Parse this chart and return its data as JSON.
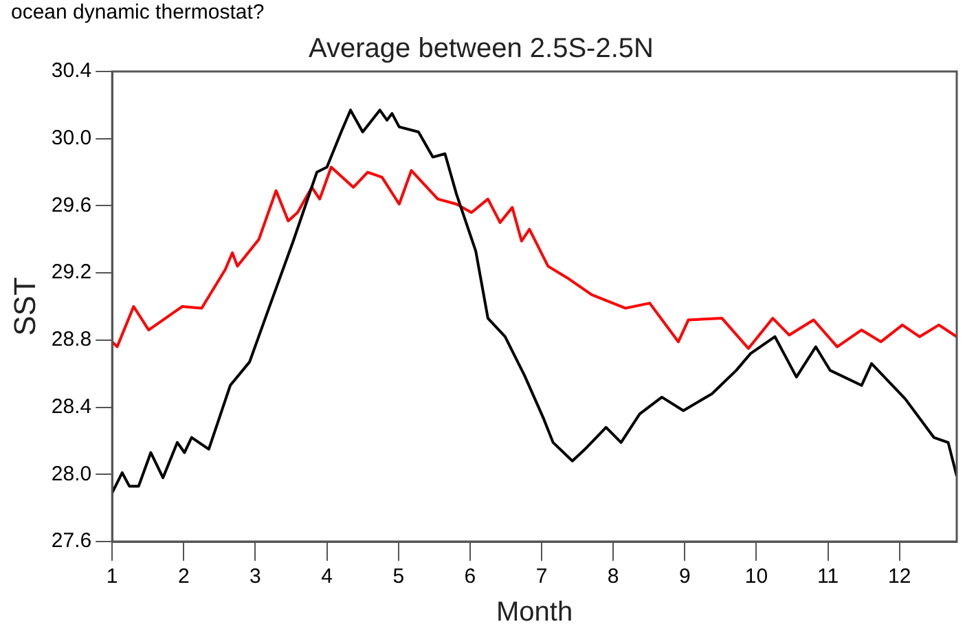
{
  "chart_data": {
    "type": "line",
    "title": "Average between 2.5S-2.5N",
    "xlabel": "Month",
    "ylabel": "SST",
    "annotations": [
      "ocean dynamic thermostat?"
    ],
    "xlim": [
      1,
      12.8
    ],
    "xticks": [
      1,
      2,
      3,
      4,
      5,
      6,
      7,
      8,
      9,
      10,
      11,
      12
    ],
    "ylim": [
      27.6,
      30.4
    ],
    "yticks": [
      {
        "value": 27.6,
        "label": "27.6"
      },
      {
        "value": 28,
        "label": "28.0"
      },
      28.4,
      28.8,
      29.2,
      29.6,
      {
        "value": 30,
        "label": "30.0"
      },
      30.4
    ],
    "grid": false,
    "legend": false,
    "marker": "none",
    "line_style": "solid",
    "series": [
      {
        "color": "#000000",
        "x": [
          1.0,
          1.14,
          1.24,
          1.37,
          1.54,
          1.71,
          1.91,
          2.01,
          2.11,
          2.35,
          2.65,
          2.92,
          3.19,
          3.53,
          3.86,
          4.0,
          4.2,
          4.33,
          4.5,
          4.74,
          4.84,
          4.91,
          5.01,
          5.28,
          5.48,
          5.65,
          5.81,
          6.08,
          6.25,
          6.49,
          6.76,
          7.03,
          7.16,
          7.43,
          7.63,
          7.9,
          8.11,
          8.37,
          8.68,
          8.98,
          9.38,
          9.72,
          9.92,
          10.26,
          10.56,
          10.83,
          11.03,
          11.47,
          11.61,
          12.08,
          12.48,
          12.68,
          12.8
        ],
        "values": [
          27.89,
          28.01,
          27.93,
          27.93,
          28.13,
          27.98,
          28.19,
          28.13,
          28.22,
          28.15,
          28.53,
          28.67,
          28.99,
          29.39,
          29.8,
          29.83,
          30.04,
          30.17,
          30.04,
          30.17,
          30.11,
          30.15,
          30.07,
          30.04,
          29.89,
          29.91,
          29.67,
          29.33,
          28.93,
          28.82,
          28.59,
          28.33,
          28.19,
          28.08,
          28.16,
          28.28,
          28.19,
          28.36,
          28.46,
          28.38,
          28.48,
          28.62,
          28.72,
          28.82,
          28.58,
          28.76,
          28.62,
          28.53,
          28.66,
          28.45,
          28.22,
          28.19,
          27.99
        ]
      },
      {
        "color": "#ff0000",
        "x": [
          1.0,
          1.07,
          1.3,
          1.51,
          1.71,
          1.98,
          2.25,
          2.58,
          2.68,
          2.75,
          3.05,
          3.29,
          3.46,
          3.59,
          3.79,
          3.9,
          4.06,
          4.37,
          4.57,
          4.77,
          5.01,
          5.18,
          5.55,
          5.81,
          6.02,
          6.25,
          6.42,
          6.59,
          6.72,
          6.83,
          7.09,
          7.36,
          7.7,
          8.17,
          8.51,
          8.91,
          9.05,
          9.52,
          9.89,
          10.23,
          10.46,
          10.8,
          11.13,
          11.47,
          11.74,
          12.04,
          12.28,
          12.55,
          12.8
        ],
        "values": [
          28.79,
          28.76,
          29.0,
          28.86,
          28.92,
          29.0,
          28.99,
          29.22,
          29.32,
          29.24,
          29.4,
          29.69,
          29.51,
          29.56,
          29.71,
          29.64,
          29.83,
          29.71,
          29.8,
          29.77,
          29.61,
          29.81,
          29.64,
          29.61,
          29.56,
          29.64,
          29.5,
          29.59,
          29.39,
          29.46,
          29.24,
          29.17,
          29.07,
          28.99,
          29.02,
          28.79,
          28.92,
          28.93,
          28.75,
          28.93,
          28.83,
          28.92,
          28.76,
          28.86,
          28.79,
          28.89,
          28.82,
          28.89,
          28.82
        ]
      }
    ]
  }
}
